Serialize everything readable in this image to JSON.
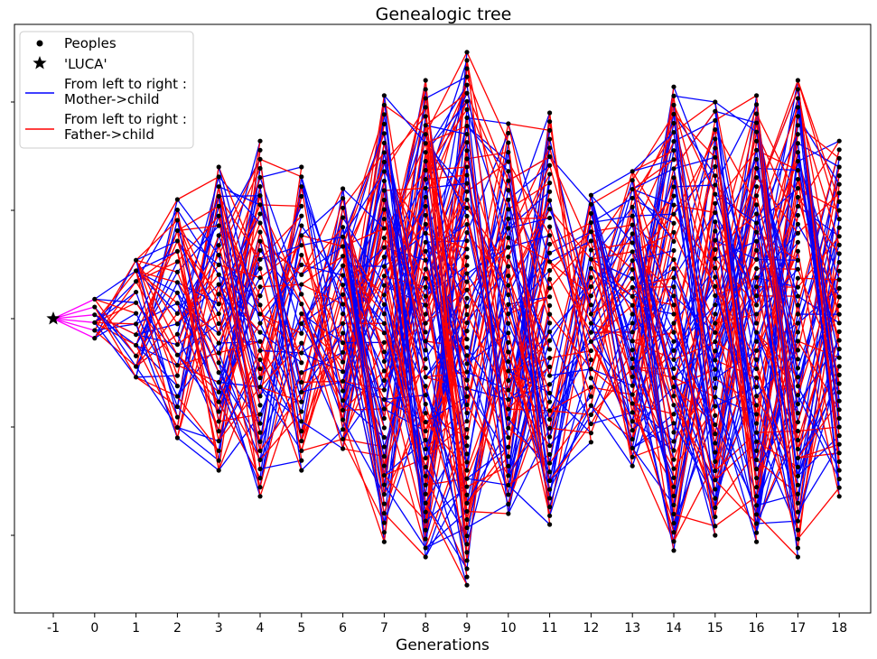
{
  "chart_data": {
    "type": "line",
    "title": "Genealogic tree",
    "xlabel": "Generations",
    "ylabel": "",
    "x_ticks": [
      "-1",
      "0",
      "1",
      "2",
      "3",
      "4",
      "5",
      "6",
      "7",
      "8",
      "9",
      "10",
      "11",
      "12",
      "13",
      "14",
      "15",
      "16",
      "17",
      "18"
    ],
    "xlim": [
      -2,
      19
    ],
    "ylim": [
      -1,
      1
    ],
    "y_ticklabels_shown": false,
    "grid": false,
    "legend_position": "top-left",
    "legend": [
      {
        "name": "Peoples",
        "marker": "circle",
        "color": "#000000"
      },
      {
        "name": "'LUCA'",
        "marker": "star",
        "color": "#000000"
      },
      {
        "name": "From left to right :\nMother->child",
        "marker": "line",
        "color": "#0000ff"
      },
      {
        "name": "From left to right :\nFather->child",
        "marker": "line",
        "color": "#ff0000"
      }
    ],
    "luca": {
      "x": -1,
      "y": 0
    },
    "luca_link_color": "#ff00ff",
    "mother_color": "#0000ff",
    "father_color": "#ff0000",
    "generations": [
      {
        "gen": 0,
        "count": 6,
        "y_min": -0.09,
        "y_max": 0.09
      },
      {
        "gen": 1,
        "count": 12,
        "y_min": -0.27,
        "y_max": 0.27
      },
      {
        "gen": 2,
        "count": 24,
        "y_min": -0.55,
        "y_max": 0.55
      },
      {
        "gen": 3,
        "count": 32,
        "y_min": -0.7,
        "y_max": 0.7
      },
      {
        "gen": 4,
        "count": 40,
        "y_min": -0.82,
        "y_max": 0.82
      },
      {
        "gen": 5,
        "count": 32,
        "y_min": -0.7,
        "y_max": 0.7
      },
      {
        "gen": 6,
        "count": 28,
        "y_min": -0.6,
        "y_max": 0.6
      },
      {
        "gen": 7,
        "count": 48,
        "y_min": -1.03,
        "y_max": 1.03
      },
      {
        "gen": 8,
        "count": 54,
        "y_min": -1.1,
        "y_max": 1.1
      },
      {
        "gen": 9,
        "count": 66,
        "y_min": -1.23,
        "y_max": 1.23
      },
      {
        "gen": 10,
        "count": 42,
        "y_min": -0.9,
        "y_max": 0.9
      },
      {
        "gen": 11,
        "count": 48,
        "y_min": -0.95,
        "y_max": 0.95
      },
      {
        "gen": 12,
        "count": 28,
        "y_min": -0.57,
        "y_max": 0.57
      },
      {
        "gen": 13,
        "count": 34,
        "y_min": -0.68,
        "y_max": 0.68
      },
      {
        "gen": 14,
        "count": 52,
        "y_min": -1.07,
        "y_max": 1.07
      },
      {
        "gen": 15,
        "count": 48,
        "y_min": -1.0,
        "y_max": 1.0
      },
      {
        "gen": 16,
        "count": 50,
        "y_min": -1.03,
        "y_max": 1.03
      },
      {
        "gen": 17,
        "count": 54,
        "y_min": -1.1,
        "y_max": 1.1
      },
      {
        "gen": 18,
        "count": 42,
        "y_min": -0.82,
        "y_max": 0.82
      }
    ]
  }
}
